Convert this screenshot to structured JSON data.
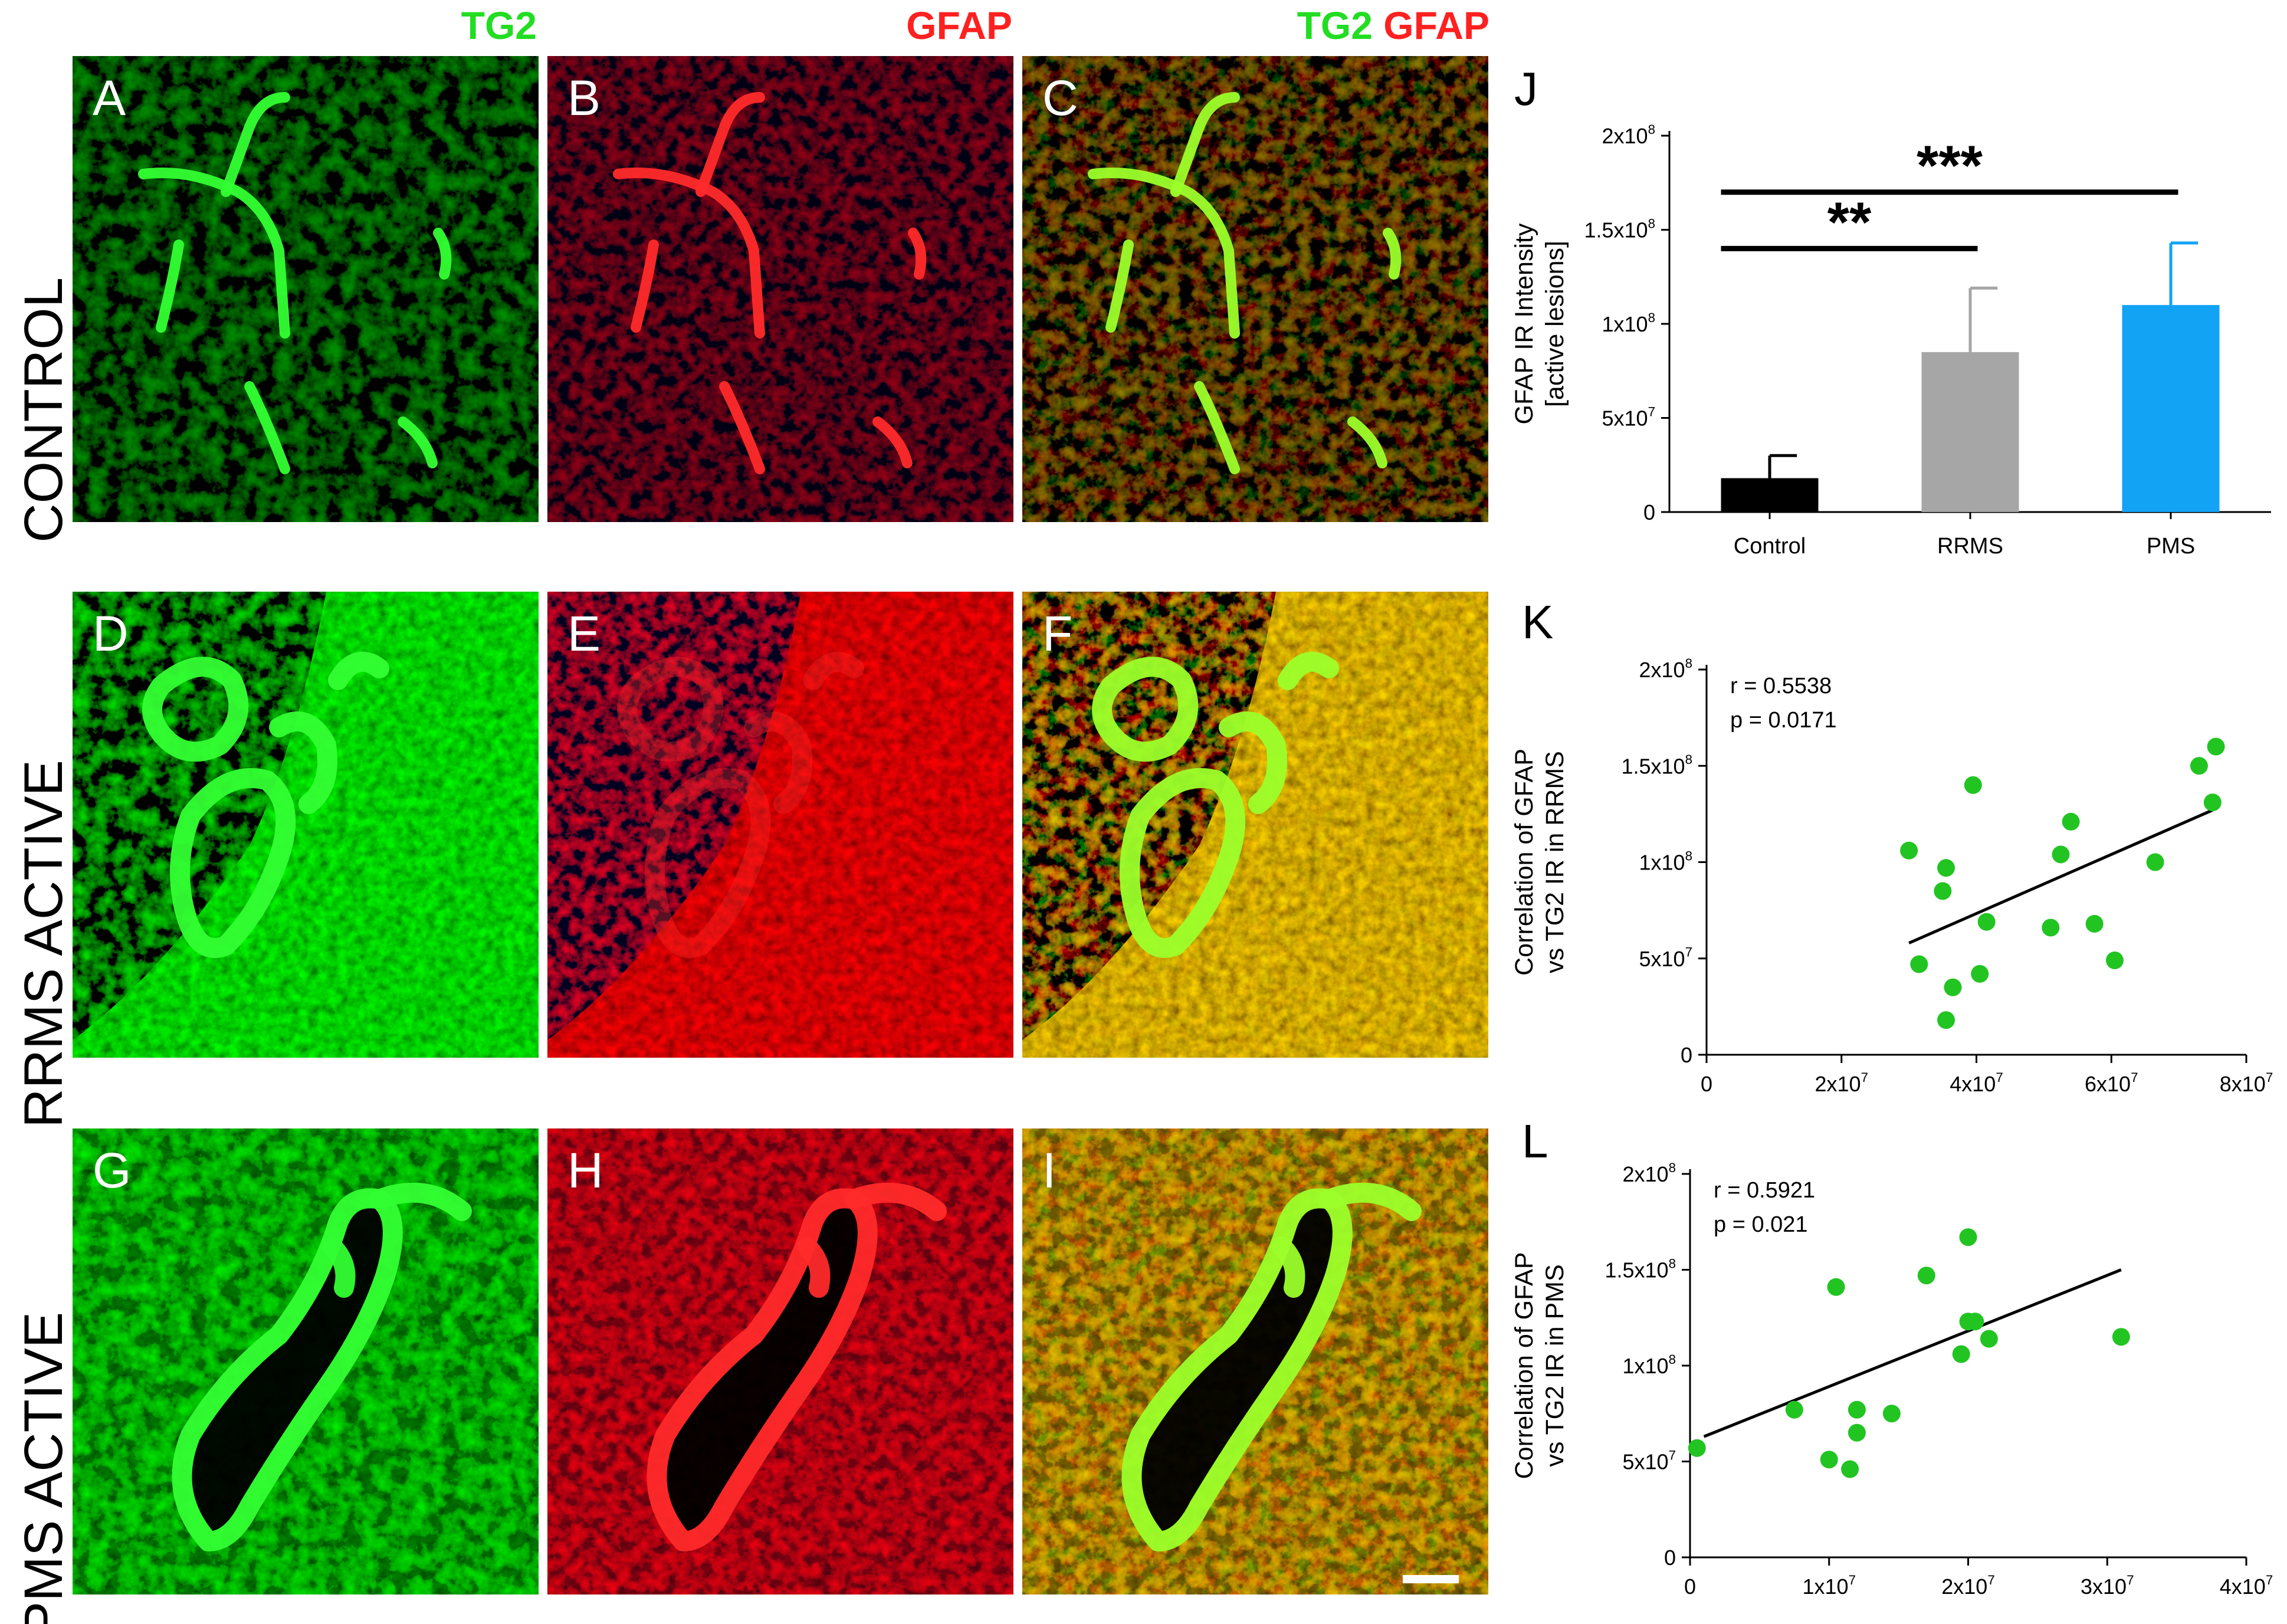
{
  "header": {
    "tg2": "TG2",
    "gfap": "GFAP",
    "merge_tg2": "TG2",
    "merge_gfap": "GFAP",
    "color_green": "#22dd22",
    "color_red": "#ff2020"
  },
  "row_labels": [
    "CONTROL",
    "RRMS ACTIVE",
    "PMS ACTIVE"
  ],
  "panels": [
    {
      "letter": "A",
      "stain": "green"
    },
    {
      "letter": "B",
      "stain": "red"
    },
    {
      "letter": "C",
      "stain": "merge"
    },
    {
      "letter": "D",
      "stain": "green"
    },
    {
      "letter": "E",
      "stain": "red"
    },
    {
      "letter": "F",
      "stain": "merge"
    },
    {
      "letter": "G",
      "stain": "green"
    },
    {
      "letter": "H",
      "stain": "red"
    },
    {
      "letter": "I",
      "stain": "merge"
    }
  ],
  "chart_data": [
    {
      "panel": "J",
      "type": "bar",
      "ylabel_lines": [
        "GFAP IR Intensity",
        "[active lesions]"
      ],
      "ylim": [
        0,
        200000000
      ],
      "yticks": [
        {
          "value": 0,
          "mant": "0",
          "exp": ""
        },
        {
          "value": 50000000,
          "mant": "5x10",
          "exp": "7"
        },
        {
          "value": 100000000,
          "mant": "1x10",
          "exp": "8"
        },
        {
          "value": 150000000,
          "mant": "1.5x10",
          "exp": "8"
        },
        {
          "value": 200000000,
          "mant": "2x10",
          "exp": "8"
        }
      ],
      "categories": [
        "Control",
        "RRMS",
        "PMS"
      ],
      "values": [
        18000000,
        85000000,
        110000000
      ],
      "errors": [
        12000000,
        34000000,
        33000000
      ],
      "colors": [
        "#000000",
        "#a6a6a6",
        "#12a3f5"
      ],
      "significance": [
        {
          "from": 0,
          "to": 1,
          "value": 140000000,
          "label": "**"
        },
        {
          "from": 0,
          "to": 2,
          "value": 170000000,
          "label": "***"
        }
      ]
    },
    {
      "panel": "K",
      "type": "scatter",
      "ylabel_lines": [
        "Correlation of GFAP",
        "vs TG2 IR in RRMS"
      ],
      "stats": [
        "r = 0.5538",
        "p = 0.0171"
      ],
      "xlim": [
        0,
        80000000
      ],
      "ylim": [
        0,
        200000000
      ],
      "xticks": [
        {
          "value": 0,
          "mant": "0",
          "exp": ""
        },
        {
          "value": 20000000,
          "mant": "2x10",
          "exp": "7"
        },
        {
          "value": 40000000,
          "mant": "4x10",
          "exp": "7"
        },
        {
          "value": 60000000,
          "mant": "6x10",
          "exp": "7"
        },
        {
          "value": 80000000,
          "mant": "8x10",
          "exp": "7"
        }
      ],
      "yticks": [
        {
          "value": 0,
          "mant": "0",
          "exp": ""
        },
        {
          "value": 50000000,
          "mant": "5x10",
          "exp": "7"
        },
        {
          "value": 100000000,
          "mant": "1x10",
          "exp": "8"
        },
        {
          "value": 150000000,
          "mant": "1.5x10",
          "exp": "8"
        },
        {
          "value": 200000000,
          "mant": "2x10",
          "exp": "8"
        }
      ],
      "points": [
        [
          30000000,
          106000000
        ],
        [
          35000000,
          85000000
        ],
        [
          35500000,
          97000000
        ],
        [
          39500000,
          140000000
        ],
        [
          31500000,
          47000000
        ],
        [
          36500000,
          35000000
        ],
        [
          35500000,
          18000000
        ],
        [
          41500000,
          69000000
        ],
        [
          40500000,
          42000000
        ],
        [
          51000000,
          66000000
        ],
        [
          52500000,
          104000000
        ],
        [
          54000000,
          121000000
        ],
        [
          57500000,
          68000000
        ],
        [
          60500000,
          49000000
        ],
        [
          66500000,
          100000000
        ],
        [
          73000000,
          150000000
        ],
        [
          75500000,
          160000000
        ],
        [
          75000000,
          131000000
        ]
      ],
      "fit": [
        [
          30000000,
          58000000
        ],
        [
          75000000,
          127000000
        ]
      ],
      "point_color": "#22c422"
    },
    {
      "panel": "L",
      "type": "scatter",
      "ylabel_lines": [
        "Correlation of GFAP",
        "vs TG2 IR in PMS"
      ],
      "stats": [
        "r = 0.5921",
        "p = 0.021"
      ],
      "xlim": [
        0,
        40000000
      ],
      "ylim": [
        0,
        200000000
      ],
      "xticks": [
        {
          "value": 0,
          "mant": "0",
          "exp": ""
        },
        {
          "value": 10000000,
          "mant": "1x10",
          "exp": "7"
        },
        {
          "value": 20000000,
          "mant": "2x10",
          "exp": "7"
        },
        {
          "value": 30000000,
          "mant": "3x10",
          "exp": "7"
        },
        {
          "value": 40000000,
          "mant": "4x10",
          "exp": "7"
        }
      ],
      "yticks": [
        {
          "value": 0,
          "mant": "0",
          "exp": ""
        },
        {
          "value": 50000000,
          "mant": "5x10",
          "exp": "7"
        },
        {
          "value": 100000000,
          "mant": "1x10",
          "exp": "8"
        },
        {
          "value": 150000000,
          "mant": "1.5x10",
          "exp": "8"
        },
        {
          "value": 200000000,
          "mant": "2x10",
          "exp": "8"
        }
      ],
      "points": [
        [
          500000,
          57000000
        ],
        [
          7500000,
          77000000
        ],
        [
          10000000,
          51000000
        ],
        [
          10500000,
          141000000
        ],
        [
          11500000,
          46000000
        ],
        [
          12000000,
          77000000
        ],
        [
          12000000,
          65000000
        ],
        [
          14500000,
          75000000
        ],
        [
          17000000,
          147000000
        ],
        [
          19500000,
          106000000
        ],
        [
          20000000,
          123000000
        ],
        [
          20000000,
          167000000
        ],
        [
          20500000,
          123000000
        ],
        [
          21500000,
          114000000
        ],
        [
          31000000,
          115000000
        ]
      ],
      "fit": [
        [
          1000000,
          63000000
        ],
        [
          31000000,
          150000000
        ]
      ],
      "point_color": "#22c422"
    }
  ]
}
